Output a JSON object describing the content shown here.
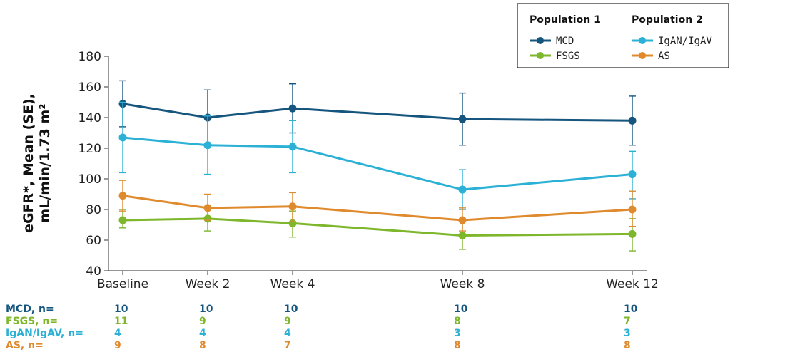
{
  "chart_data": {
    "type": "line",
    "ylabel": "eGFR*, Mean (SE), mL/min/1.73 m²",
    "ylim": [
      40,
      180
    ],
    "yticks": [
      40,
      60,
      80,
      100,
      120,
      140,
      160,
      180
    ],
    "x_labels": [
      "Baseline",
      "Week 2",
      "Week 4",
      "Week 8",
      "Week 12"
    ],
    "x_weeks": [
      0,
      2,
      4,
      8,
      12
    ],
    "legend": {
      "placement": "top-right",
      "groups": [
        {
          "title": "Population 1",
          "items": [
            "MCD",
            "FSGS"
          ]
        },
        {
          "title": "Population 2",
          "items": [
            "IgAN/IgAV",
            "AS"
          ]
        }
      ]
    },
    "series": [
      {
        "name": "MCD",
        "color": "#15557e",
        "values": [
          149,
          140,
          146,
          139,
          138
        ],
        "err_low": [
          134,
          122,
          130,
          122,
          122
        ],
        "err_high": [
          164,
          158,
          162,
          156,
          154
        ],
        "n": [
          "10",
          "10",
          "10",
          "10",
          "10"
        ]
      },
      {
        "name": "FSGS",
        "color": "#7eb72c",
        "values": [
          73,
          74,
          71,
          63,
          64
        ],
        "err_low": [
          68,
          66,
          62,
          54,
          53
        ],
        "err_high": [
          80,
          82,
          79,
          72,
          74
        ],
        "n": [
          "11",
          "9",
          "9",
          "8",
          "7"
        ]
      },
      {
        "name": "IgAN/IgAV",
        "color": "#2bb1d6",
        "values": [
          127,
          122,
          121,
          93,
          103
        ],
        "err_low": [
          104,
          103,
          104,
          80,
          87
        ],
        "err_high": [
          150,
          141,
          138,
          106,
          118
        ],
        "n": [
          "4",
          "4",
          "4",
          "3",
          "3"
        ]
      },
      {
        "name": "AS",
        "color": "#e08a2e",
        "values": [
          89,
          81,
          82,
          73,
          80
        ],
        "err_low": [
          79,
          73,
          72,
          66,
          69
        ],
        "err_high": [
          99,
          90,
          91,
          81,
          92
        ],
        "n": [
          "9",
          "8",
          "7",
          "8",
          "8"
        ]
      }
    ],
    "n_row_labels": [
      "MCD, n=",
      "FSGS, n=",
      "IgAN/IgAV, n=",
      "AS, n="
    ],
    "n_row_order": [
      "MCD",
      "FSGS",
      "IgAN/IgAV",
      "AS"
    ]
  }
}
